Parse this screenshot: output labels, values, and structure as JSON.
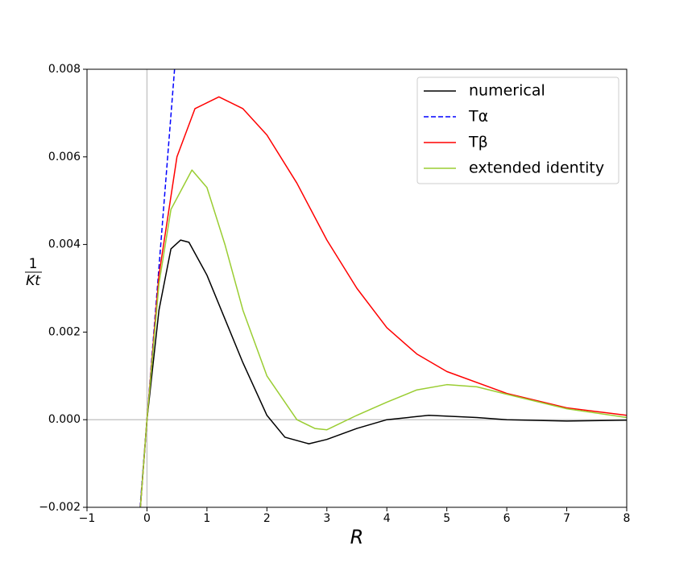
{
  "chart_data": {
    "type": "line",
    "x_label": "R",
    "y_label": {
      "numerator": "1",
      "denominator": "Kt"
    },
    "xlim": [
      -1,
      8
    ],
    "ylim": [
      -0.002,
      0.008
    ],
    "xticks": [
      {
        "value": -1,
        "label": "−1"
      },
      0,
      1,
      2,
      3,
      4,
      5,
      6,
      7,
      8
    ],
    "yticks": [
      {
        "value": -0.002,
        "label": "−0.002"
      },
      {
        "value": 0,
        "label": "0.000"
      },
      0.002,
      0.004,
      0.006,
      0.008
    ],
    "legend": "upper right",
    "series": [
      {
        "name": "numerical",
        "color": "#000000",
        "dash": false,
        "x": [
          -0.11,
          0,
          0.2,
          0.4,
          0.56,
          0.7,
          1.0,
          1.3,
          1.6,
          2.0,
          2.3,
          2.7,
          3.0,
          3.5,
          4.0,
          4.7,
          5.5,
          6.0,
          7.0,
          8.0
        ],
        "values": [
          -0.002,
          0,
          0.0025,
          0.0039,
          0.0041,
          0.00405,
          0.0033,
          0.0023,
          0.0013,
          0.0001,
          -0.0004,
          -0.00055,
          -0.00045,
          -0.0002,
          0,
          0.0001,
          5e-05,
          0,
          -3e-05,
          -1e-05
        ]
      },
      {
        "name": "Tα",
        "color": "#0000ff",
        "dash": true,
        "x": [
          -0.115,
          0,
          0.46
        ],
        "values": [
          -0.002,
          0,
          0.008
        ]
      },
      {
        "name": "Tβ",
        "color": "#ff0000",
        "dash": false,
        "x": [
          -0.11,
          0,
          0.2,
          0.5,
          0.8,
          1.2,
          1.6,
          2.0,
          2.5,
          3.0,
          3.5,
          4.0,
          4.5,
          5.0,
          6.0,
          7.0,
          8.0
        ],
        "values": [
          -0.002,
          0,
          0.0033,
          0.006,
          0.0071,
          0.00737,
          0.0071,
          0.0065,
          0.0054,
          0.0041,
          0.003,
          0.0021,
          0.0015,
          0.0011,
          0.0006,
          0.00027,
          0.0001
        ]
      },
      {
        "name": "extended identity",
        "color": "#9acd32",
        "dash": false,
        "x": [
          -0.11,
          0,
          0.2,
          0.4,
          0.75,
          1.0,
          1.3,
          1.6,
          2.0,
          2.5,
          2.8,
          3.0,
          3.5,
          4.0,
          4.5,
          5.0,
          5.5,
          6.0,
          7.0,
          8.0
        ],
        "values": [
          -0.002,
          0,
          0.0031,
          0.0048,
          0.0057,
          0.0053,
          0.004,
          0.0025,
          0.001,
          0,
          -0.0002,
          -0.00023,
          0.0001,
          0.0004,
          0.00068,
          0.0008,
          0.00075,
          0.00058,
          0.00025,
          5e-05
        ]
      }
    ]
  }
}
